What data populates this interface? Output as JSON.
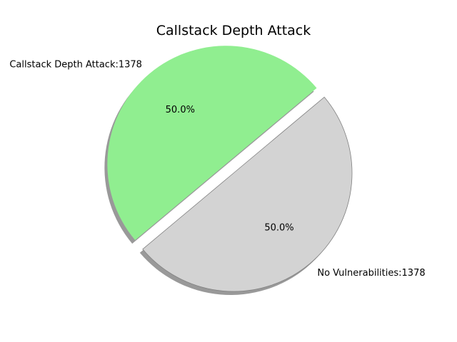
{
  "chart_data": {
    "type": "pie",
    "title": "Callstack Depth Attack",
    "slices": [
      {
        "name": "Callstack Depth Attack",
        "value": 1378,
        "label": "Callstack Depth Attack:1378",
        "percent_label": "50.0%",
        "color": "#90ee90",
        "exploded": true
      },
      {
        "name": "No Vulnerabilities",
        "value": 1378,
        "label": "No Vulnerabilities:1378",
        "percent_label": "50.0%",
        "color": "#d3d3d3",
        "exploded": false
      }
    ],
    "start_angle_deg": 40,
    "shadow": true,
    "edge_color": "#808080",
    "shadow_color": "#999999"
  }
}
